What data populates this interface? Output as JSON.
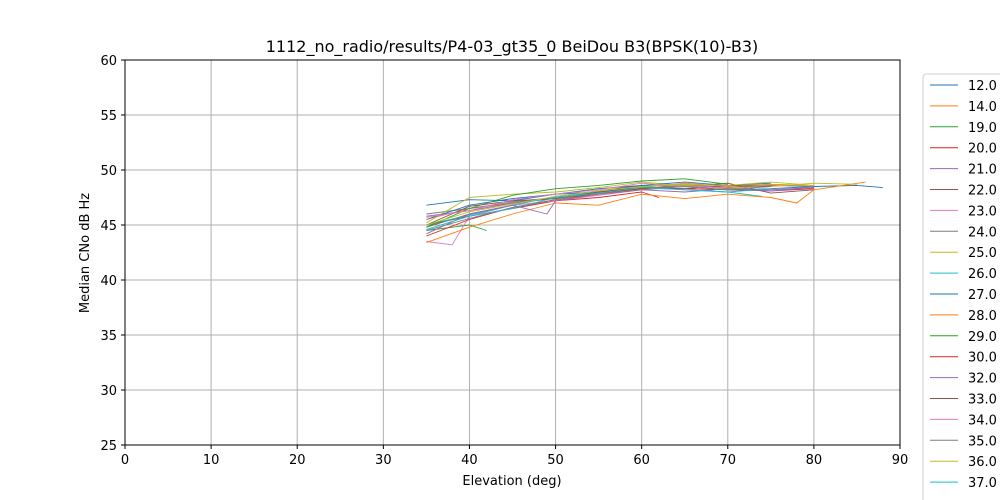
{
  "chart_data": {
    "type": "line",
    "title": "1112_no_radio/results/P4-03_gt35_0 BeiDou B3(BPSK(10)-B3)",
    "xlabel": "Elevation (deg)",
    "ylabel": "Median CNo dB Hz",
    "xlim": [
      0,
      90
    ],
    "ylim": [
      25,
      60
    ],
    "xticks": [
      "0",
      "10",
      "20",
      "30",
      "40",
      "50",
      "60",
      "70",
      "80",
      "90"
    ],
    "yticks": [
      "25",
      "30",
      "35",
      "40",
      "45",
      "50",
      "55",
      "60"
    ],
    "grid": true,
    "legend_position": "right (outside, clipped)",
    "series": [
      {
        "name": "12.0",
        "color": "#1f77b4",
        "x": [
          35,
          40,
          45,
          50,
          55,
          60,
          65,
          70,
          75,
          80,
          85,
          88
        ],
        "values": [
          46.8,
          47.3,
          47.2,
          47.8,
          48.0,
          48.3,
          48.5,
          48.2,
          48.3,
          48.5,
          48.6,
          48.4
        ]
      },
      {
        "name": "14.0",
        "color": "#ff7f0e",
        "x": [
          35,
          40,
          45,
          50,
          55,
          60,
          65,
          70,
          75,
          80
        ],
        "values": [
          45.5,
          46.5,
          47.0,
          47.5,
          47.8,
          48.4,
          48.8,
          48.5,
          48.7,
          48.6
        ]
      },
      {
        "name": "19.0",
        "color": "#2ca02c",
        "x": [
          35,
          38,
          40,
          42
        ],
        "values": [
          44.5,
          44.8,
          45.0,
          44.5
        ]
      },
      {
        "name": "20.0",
        "color": "#d62728",
        "x": [
          35,
          40,
          45,
          50,
          55,
          60,
          62
        ],
        "values": [
          45.0,
          45.8,
          46.5,
          47.2,
          47.5,
          48.0,
          47.5
        ]
      },
      {
        "name": "21.0",
        "color": "#9467bd",
        "x": [
          35,
          40,
          45,
          50,
          55,
          60,
          65,
          70,
          75,
          80
        ],
        "values": [
          45.8,
          46.3,
          47.0,
          47.4,
          48.0,
          48.5,
          48.7,
          48.3,
          48.2,
          48.4
        ]
      },
      {
        "name": "22.0",
        "color": "#8c564b",
        "x": [
          35,
          40,
          45,
          50,
          55,
          60,
          65,
          70,
          75,
          80
        ],
        "values": [
          44.8,
          46.0,
          46.8,
          47.6,
          48.1,
          48.6,
          48.5,
          48.8,
          47.9,
          48.2
        ]
      },
      {
        "name": "23.0",
        "color": "#e377c2",
        "x": [
          35,
          38,
          40,
          45,
          50,
          55,
          60,
          65,
          70
        ],
        "values": [
          43.5,
          43.2,
          45.8,
          46.8,
          47.2,
          47.7,
          48.2,
          48.7,
          48.4
        ]
      },
      {
        "name": "24.0",
        "color": "#7f7f7f",
        "x": [
          35,
          40,
          45,
          50,
          55,
          60,
          65,
          70,
          75,
          80
        ],
        "values": [
          46.0,
          46.5,
          47.1,
          47.5,
          47.9,
          48.3,
          48.6,
          48.4,
          48.6,
          48.5
        ]
      },
      {
        "name": "25.0",
        "color": "#bcbd22",
        "x": [
          35,
          40,
          45,
          50,
          55,
          60,
          65,
          70,
          75,
          80,
          85
        ],
        "values": [
          45.2,
          47.5,
          47.8,
          48.0,
          48.4,
          48.9,
          48.6,
          48.3,
          48.5,
          48.8,
          48.7
        ]
      },
      {
        "name": "26.0",
        "color": "#17becf",
        "x": [
          35,
          40,
          45,
          50,
          55,
          60,
          65,
          70,
          74
        ],
        "values": [
          45.0,
          45.9,
          46.8,
          47.6,
          48.0,
          48.5,
          48.2,
          48.0,
          47.6
        ]
      },
      {
        "name": "27.0",
        "color": "#1f77b4",
        "x": [
          35,
          40,
          45,
          50,
          55,
          60,
          65,
          70,
          75
        ],
        "values": [
          45.5,
          46.8,
          47.4,
          47.8,
          48.3,
          48.6,
          48.9,
          48.6,
          48.8
        ]
      },
      {
        "name": "28.0",
        "color": "#ff7f0e",
        "x": [
          35,
          40,
          45,
          50,
          55,
          60,
          65,
          70,
          75,
          78,
          80,
          86
        ],
        "values": [
          43.4,
          44.8,
          46.0,
          47.0,
          46.8,
          47.8,
          47.4,
          47.8,
          47.5,
          47.0,
          48.2,
          48.9
        ]
      },
      {
        "name": "29.0",
        "color": "#2ca02c",
        "x": [
          35,
          40,
          45,
          50,
          55,
          60,
          65,
          70
        ],
        "values": [
          44.8,
          46.5,
          47.7,
          48.3,
          48.6,
          49.0,
          49.2,
          48.7
        ]
      },
      {
        "name": "30.0",
        "color": "#d62728",
        "x": [
          35,
          40,
          45,
          50,
          55,
          60,
          65,
          70,
          75,
          80
        ],
        "values": [
          44.0,
          45.5,
          46.6,
          47.3,
          47.9,
          48.3,
          48.3,
          48.2,
          48.1,
          48.3
        ]
      },
      {
        "name": "32.0",
        "color": "#9467bd",
        "x": [
          35,
          40,
          45,
          49,
          50,
          55,
          60,
          65,
          70,
          75,
          80
        ],
        "values": [
          44.2,
          46.0,
          46.8,
          46.0,
          47.2,
          47.8,
          48.2,
          48.0,
          48.3,
          48.1,
          48.4
        ]
      },
      {
        "name": "33.0",
        "color": "#8c564b",
        "x": [
          35,
          40,
          45,
          50,
          55,
          60,
          65,
          70,
          75
        ],
        "values": [
          45.0,
          46.7,
          47.2,
          47.4,
          48.0,
          48.4,
          48.3,
          48.6,
          48.5
        ]
      },
      {
        "name": "34.0",
        "color": "#e377c2",
        "x": [
          35,
          40,
          45,
          50,
          55,
          60,
          65,
          70
        ],
        "values": [
          45.7,
          46.3,
          47.3,
          47.8,
          48.2,
          48.8,
          48.5,
          48.4
        ]
      },
      {
        "name": "35.0",
        "color": "#7f7f7f",
        "x": [
          35,
          40,
          45,
          50,
          55,
          60,
          65,
          70,
          75
        ],
        "values": [
          44.5,
          45.6,
          46.6,
          47.3,
          47.8,
          48.2,
          48.5,
          48.2,
          48.5
        ]
      },
      {
        "name": "36.0",
        "color": "#bcbd22",
        "x": [
          35,
          40,
          45,
          50,
          55,
          60,
          65,
          70,
          75,
          80
        ],
        "values": [
          45.0,
          46.2,
          46.9,
          47.6,
          48.1,
          48.5,
          48.7,
          48.6,
          48.9,
          48.6
        ]
      },
      {
        "name": "37.0",
        "color": "#17becf",
        "x": [
          35,
          40,
          45,
          50,
          55,
          60,
          65,
          70,
          75
        ],
        "values": [
          44.6,
          45.8,
          46.5,
          47.5,
          47.9,
          48.4,
          48.2,
          48.0,
          48.3
        ]
      }
    ]
  }
}
